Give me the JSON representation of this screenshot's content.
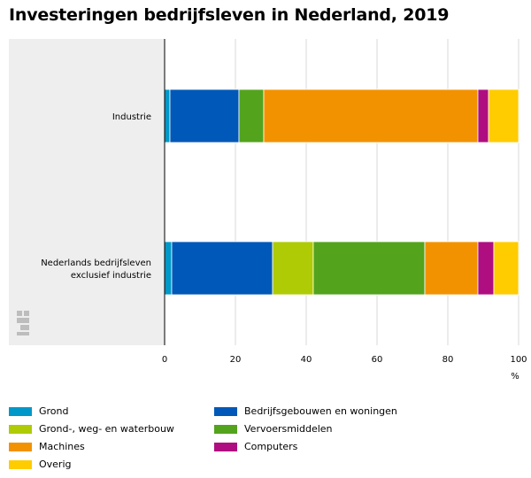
{
  "title": "Investeringen bedrijfsleven in Nederland, 2019",
  "chart_data": {
    "type": "bar",
    "orientation": "horizontal",
    "stacked": true,
    "categories": [
      "Industrie",
      "Nederlands bedrijfsleven exclusief industrie"
    ],
    "series": [
      {
        "name": "Grond",
        "color": "#0098c8",
        "values": [
          1.5,
          2
        ]
      },
      {
        "name": "Bedrijfsgebouwen en woningen",
        "color": "#0058b8",
        "values": [
          19.5,
          28.5
        ]
      },
      {
        "name": "Grond-, weg- en waterbouw",
        "color": "#afcb05",
        "values": [
          0,
          11.5
        ]
      },
      {
        "name": "Vervoersmiddelen",
        "color": "#53a31d",
        "values": [
          7,
          31.5
        ]
      },
      {
        "name": "Machines",
        "color": "#f39200",
        "values": [
          60.5,
          15
        ]
      },
      {
        "name": "Computers",
        "color": "#af0e80",
        "values": [
          3,
          4.5
        ]
      },
      {
        "name": "Overig",
        "color": "#ffcc00",
        "values": [
          8.5,
          7
        ]
      }
    ],
    "xlim": [
      0,
      100
    ],
    "xticks": [
      0,
      20,
      40,
      60,
      80,
      100
    ],
    "xlabel": "%",
    "grid": true,
    "legend_position": "bottom"
  },
  "legend_order": [
    0,
    1,
    2,
    3,
    4,
    5,
    6
  ],
  "logo_text": "cbs"
}
